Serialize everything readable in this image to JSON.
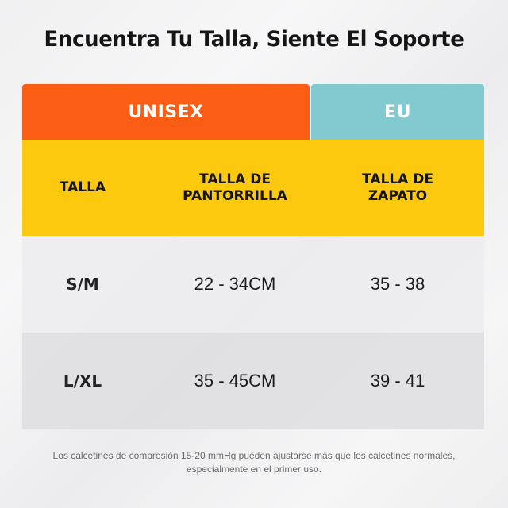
{
  "title": "Encuentra Tu Talla, Siente El Soporte",
  "table": {
    "group_headers": [
      {
        "label": "UNISEX",
        "color": "#fb5d14"
      },
      {
        "label": "EU",
        "color": "#82cad0"
      }
    ],
    "column_headers_color": "#fdc90f",
    "columns": [
      "TALLA",
      "TALLA DE PANTORRILLA",
      "TALLA DE ZAPATO"
    ],
    "columns_lines": [
      [
        "TALLA"
      ],
      [
        "TALLA DE",
        "PANTORRILLA"
      ],
      [
        "TALLA DE",
        "ZAPATO"
      ]
    ],
    "rows": [
      {
        "size": "S/M",
        "calf": "22 - 34CM",
        "shoe": "35 - 38"
      },
      {
        "size": "L/XL",
        "calf": "35 - 45CM",
        "shoe": "39 - 41"
      }
    ]
  },
  "note": {
    "line1": "Los calcetines de compresión 15-20 mmHg pueden ajustarse más que los calcetines normales,",
    "line2": "especialmente en el primer uso."
  }
}
